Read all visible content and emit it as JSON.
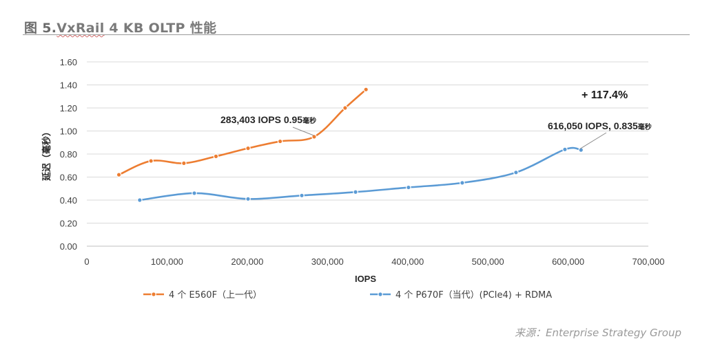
{
  "figure": {
    "prefix": "图 5.",
    "brand": "VxRail",
    "title_rest": " 4 KB OLTP 性能"
  },
  "source": "来源：Enterprise Strategy Group",
  "colors": {
    "series1": "#ed7d31",
    "series2": "#5b9bd5",
    "grid": "#d9d9d9",
    "axis_text": "#404040"
  },
  "chart_data": {
    "type": "line",
    "xlabel": "IOPS",
    "ylabel": "延迟（毫秒）",
    "xlim": [
      0,
      700000
    ],
    "ylim": [
      0,
      1.6
    ],
    "x_ticks": [
      0,
      100000,
      200000,
      300000,
      400000,
      500000,
      600000,
      700000
    ],
    "x_tick_labels": [
      "0",
      "100,000",
      "200,000",
      "300,000",
      "400,000",
      "500,000",
      "600,000",
      "700,000"
    ],
    "y_ticks": [
      0,
      0.2,
      0.4,
      0.6,
      0.8,
      1.0,
      1.2,
      1.4,
      1.6
    ],
    "y_tick_labels": [
      "0.00",
      "0.20",
      "0.40",
      "0.60",
      "0.80",
      "1.00",
      "1.20",
      "1.40",
      "1.60"
    ],
    "grid": true,
    "legend_position": "bottom",
    "series": [
      {
        "name": "4 个 E560F（上一代）",
        "color": "#ed7d31",
        "x": [
          40000,
          80000,
          121000,
          161000,
          201000,
          241000,
          283403,
          322000,
          348000
        ],
        "y": [
          0.62,
          0.74,
          0.72,
          0.78,
          0.85,
          0.91,
          0.95,
          1.2,
          1.36
        ]
      },
      {
        "name": "4 个 P670F（当代）(PCIe4) + RDMA",
        "color": "#5b9bd5",
        "x": [
          66000,
          134000,
          201000,
          268000,
          335000,
          401000,
          468000,
          535000,
          596000,
          616050
        ],
        "y": [
          0.4,
          0.46,
          0.41,
          0.44,
          0.47,
          0.51,
          0.55,
          0.64,
          0.84,
          0.835
        ]
      }
    ],
    "annotations": [
      {
        "text_main": "283,403 IOPS 0.95",
        "text_small": "毫秒",
        "series": 0,
        "point": 6
      },
      {
        "text_main": "616,050 IOPS, 0.835",
        "text_small": "毫秒",
        "series": 1,
        "point": 9
      }
    ],
    "callout": "+ 117.4%"
  }
}
